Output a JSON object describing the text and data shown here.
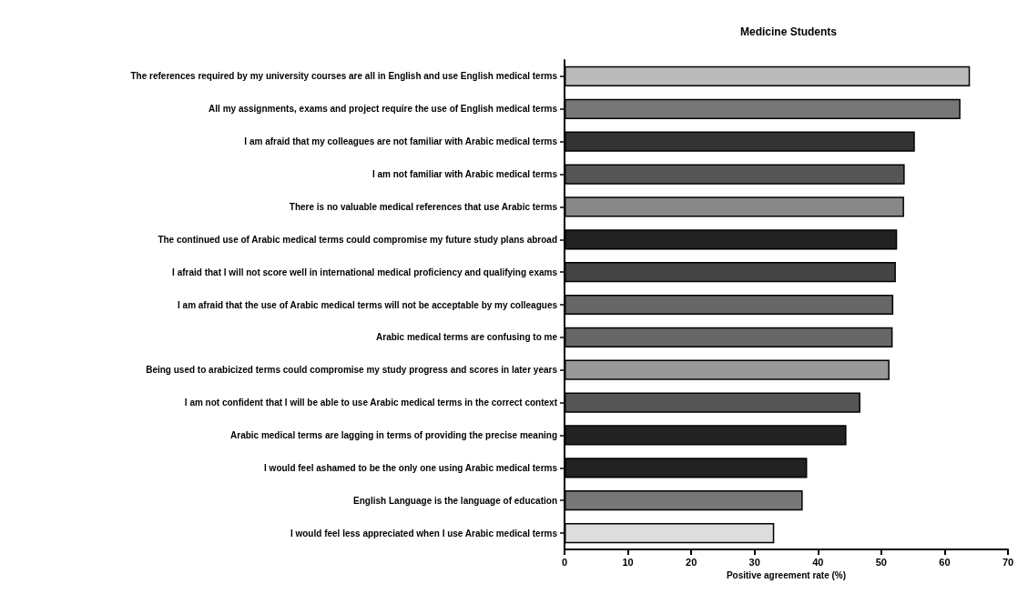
{
  "chart_data": {
    "type": "bar",
    "orientation": "horizontal",
    "title": "Medicine Students",
    "xlabel": "Positive agreement rate (%)",
    "categories": [
      "The references required by my university courses are all in English and use English medical terms",
      "All my assignments, exams and project require the use of English medical terms",
      "I am afraid that my colleagues are not familiar with Arabic medical terms",
      "I am not familiar with Arabic medical terms",
      "There is no valuable medical references that use Arabic terms",
      "The continued use of Arabic medical terms could compromise my future study plans abroad",
      "I afraid that I will not score well in international medical proficiency and qualifying exams",
      "I am afraid that the use of Arabic medical terms will not be acceptable by my colleagues",
      "Arabic medical terms are confusing to me",
      "Being used to arabicized terms could compromise my study progress and scores in later years",
      "I am not confident that I will be able to use Arabic medical terms in the correct context",
      "Arabic medical terms are lagging in terms of providing the precise meaning",
      "I would feel ashamed to be the only one using Arabic medical terms",
      "English Language is the language of education",
      "I would feel less appreciated when I use Arabic medical terms"
    ],
    "values": [
      64.0,
      62.5,
      55.3,
      53.7,
      53.6,
      52.5,
      52.3,
      51.9,
      51.8,
      51.3,
      46.7,
      44.5,
      38.3,
      37.6,
      33.1
    ],
    "colors": [
      "#bbbbbb",
      "#777777",
      "#333333",
      "#555555",
      "#888888",
      "#222222",
      "#444444",
      "#666666",
      "#666666",
      "#999999",
      "#555555",
      "#222222",
      "#222222",
      "#777777",
      "#dddddd"
    ],
    "xlim": [
      0,
      70
    ],
    "xticks": [
      0,
      10,
      20,
      30,
      40,
      50,
      60,
      70
    ],
    "grid": false
  }
}
